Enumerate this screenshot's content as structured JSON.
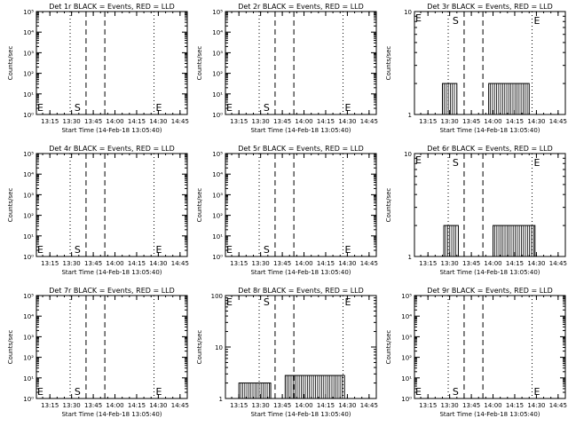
{
  "figure": {
    "xtitle": "Start Time (14-Feb-18 13:05:40)",
    "ylabel": "Counts/sec",
    "xticks": [
      "13:15",
      "13:30",
      "13:45",
      "14:00",
      "14:15",
      "14:30",
      "14:45"
    ],
    "line_color": "#000000"
  },
  "chart_data": [
    {
      "type": "line",
      "title": "Det 1r BLACK = Events, RED = LLD",
      "scale": "log",
      "yticks": [
        "10⁰",
        "10¹",
        "10²",
        "10³",
        "10⁴",
        "10⁵"
      ],
      "markers": {
        "E_left": "E",
        "S": "S",
        "E_right": "E"
      },
      "series": []
    },
    {
      "type": "line",
      "title": "Det 2r BLACK = Events, RED = LLD",
      "scale": "log",
      "yticks": [
        "10⁰",
        "10¹",
        "10²",
        "10³",
        "10⁴",
        "10⁵"
      ],
      "markers": {
        "E_left": "E",
        "S": "S",
        "E_right": "E"
      },
      "series": []
    },
    {
      "type": "line",
      "title": "Det 3r BLACK = Events, RED = LLD",
      "scale": "log10",
      "yticks": [
        "1",
        "10"
      ],
      "markers": {
        "E_left": "E",
        "S": "S",
        "E_right": "E"
      },
      "series": [
        {
          "segments": [
            {
              "t0": "13:25",
              "t1": "13:35",
              "level": 2
            },
            {
              "t0": "13:57",
              "t1": "14:25",
              "level": 2
            }
          ]
        }
      ]
    },
    {
      "type": "line",
      "title": "Det 4r BLACK = Events, RED = LLD",
      "scale": "log",
      "yticks": [
        "10⁰",
        "10¹",
        "10²",
        "10³",
        "10⁴",
        "10⁵"
      ],
      "markers": {
        "E_left": "E",
        "S": "S",
        "E_right": "E"
      },
      "series": []
    },
    {
      "type": "line",
      "title": "Det 5r BLACK = Events, RED = LLD",
      "scale": "log",
      "yticks": [
        "10⁰",
        "10¹",
        "10²",
        "10³",
        "10⁴",
        "10⁵"
      ],
      "markers": {
        "E_left": "E",
        "S": "S",
        "E_right": "E"
      },
      "series": []
    },
    {
      "type": "line",
      "title": "Det 6r BLACK = Events, RED = LLD",
      "scale": "log10",
      "yticks": [
        "1",
        "10"
      ],
      "markers": {
        "E_left": "E",
        "S": "S",
        "E_right": "E"
      },
      "series": [
        {
          "segments": [
            {
              "t0": "13:26",
              "t1": "13:36",
              "level": 2
            },
            {
              "t0": "14:00",
              "t1": "14:29",
              "level": 2
            }
          ]
        }
      ]
    },
    {
      "type": "line",
      "title": "Det 7r BLACK = Events, RED = LLD",
      "scale": "log",
      "yticks": [
        "10⁰",
        "10¹",
        "10²",
        "10³",
        "10⁴",
        "10⁵"
      ],
      "markers": {
        "E_left": "E",
        "S": "S",
        "E_right": "E"
      },
      "series": []
    },
    {
      "type": "line",
      "title": "Det 8r BLACK = Events, RED = LLD",
      "scale": "log100",
      "yticks": [
        "1",
        "10",
        "100"
      ],
      "markers": {
        "E_left": "E",
        "S": "S",
        "E_right": "E"
      },
      "series": [
        {
          "segments": [
            {
              "t0": "13:15",
              "t1": "13:37",
              "level": 2
            },
            {
              "t0": "13:47",
              "t1": "14:28",
              "level": 2.8
            }
          ]
        }
      ]
    },
    {
      "type": "line",
      "title": "Det 9r BLACK = Events, RED = LLD",
      "scale": "log",
      "yticks": [
        "10⁰",
        "10¹",
        "10²",
        "10³",
        "10⁴",
        "10⁵"
      ],
      "markers": {
        "E_left": "E",
        "S": "S",
        "E_right": "E"
      },
      "series": []
    }
  ]
}
